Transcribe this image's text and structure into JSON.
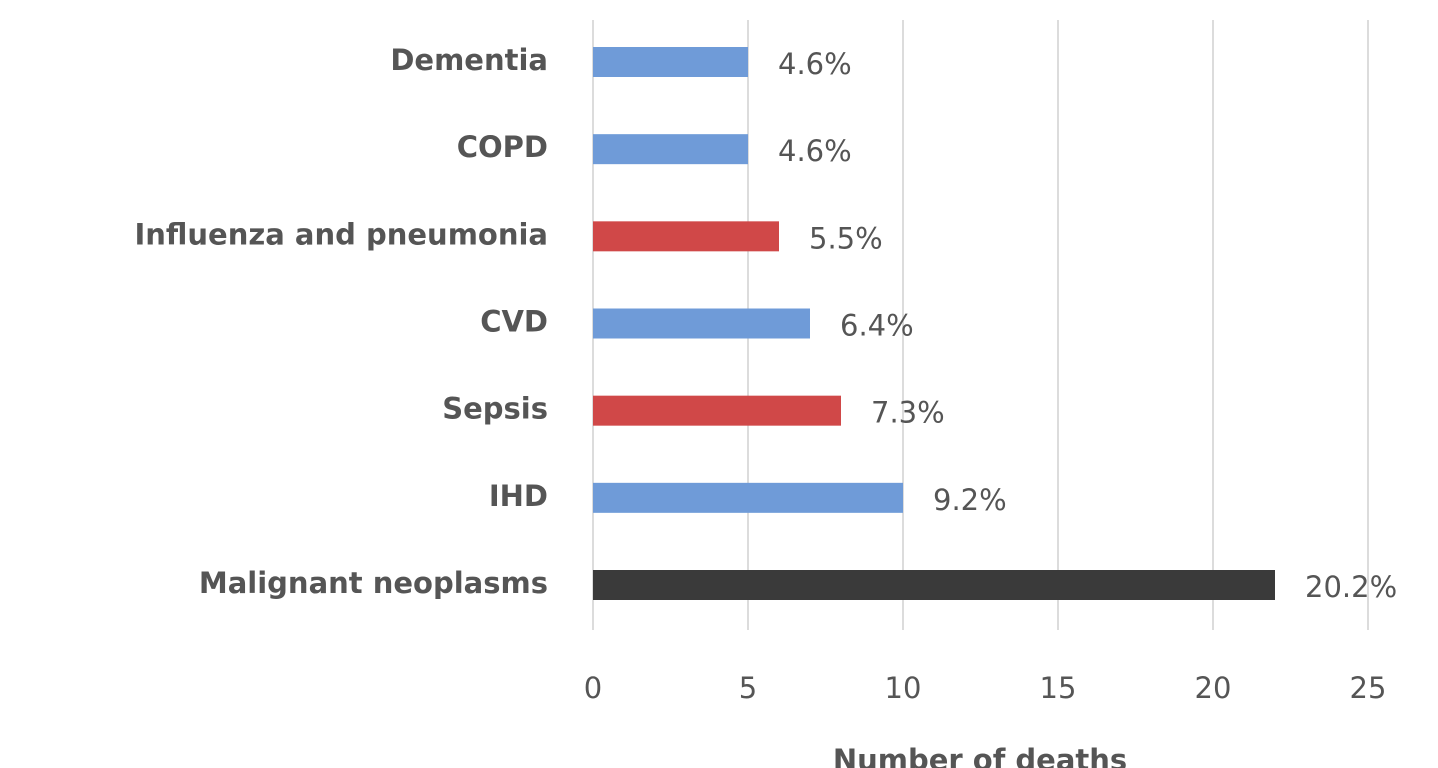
{
  "chart_data": {
    "type": "barh",
    "xlabel": "Number of deaths",
    "categories": [
      "Dementia",
      "COPD",
      "Influenza and pneumonia",
      "CVD",
      "Sepsis",
      "IHD",
      "Malignant neoplasms"
    ],
    "values": [
      5,
      5,
      6,
      7,
      8,
      10,
      22
    ],
    "bar_labels": [
      "4.6%",
      "4.6%",
      "5.5%",
      "6.4%",
      "7.3%",
      "9.2%",
      "20.2%"
    ],
    "colors": [
      "#6f9bd8",
      "#6f9bd8",
      "#d04848",
      "#6f9bd8",
      "#d04848",
      "#6f9bd8",
      "#3a3a3a"
    ],
    "xlim": [
      0,
      25
    ],
    "xticks": [
      0,
      5,
      10,
      15,
      20,
      25
    ],
    "grid": true
  }
}
